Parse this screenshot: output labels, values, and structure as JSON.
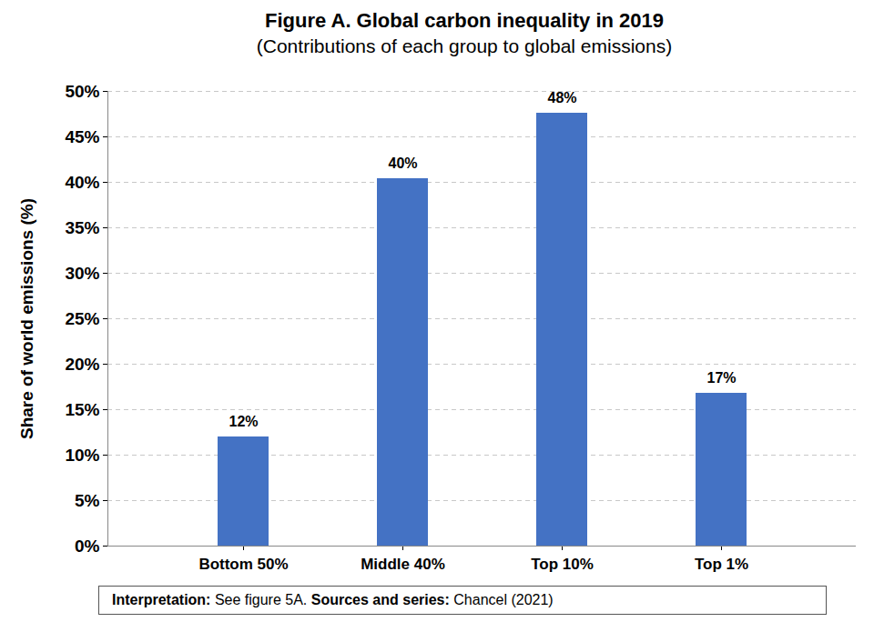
{
  "chart_data": {
    "type": "bar",
    "title": "Figure A. Global carbon inequality in 2019",
    "subtitle": "(Contributions of each group to global emissions)",
    "y_label": "Share of world emissions (%)",
    "categories": [
      "Bottom 50%",
      "Middle 40%",
      "Top 10%",
      "Top 1%"
    ],
    "values": [
      12,
      40.4,
      47.6,
      16.8
    ],
    "value_labels": [
      "12%",
      "40%",
      "48%",
      "17%"
    ],
    "color": "#4472c4",
    "ylim": [
      0,
      50
    ],
    "yticks": [
      {
        "value": 0,
        "label": "0%"
      },
      {
        "value": 5,
        "label": "5%"
      },
      {
        "value": 10,
        "label": "10%"
      },
      {
        "value": 15,
        "label": "15%"
      },
      {
        "value": 20,
        "label": "20%"
      },
      {
        "value": 25,
        "label": "25%"
      },
      {
        "value": 30,
        "label": "30%"
      },
      {
        "value": 35,
        "label": "35%"
      },
      {
        "value": 40,
        "label": "40%"
      },
      {
        "value": 45,
        "label": "45%"
      },
      {
        "value": 50,
        "label": "50%"
      }
    ],
    "grid": true,
    "data_labels": true,
    "note": [
      "Interpretation:",
      " See figure 5A. ",
      "Sources and series:",
      " Chancel (2021)"
    ]
  }
}
